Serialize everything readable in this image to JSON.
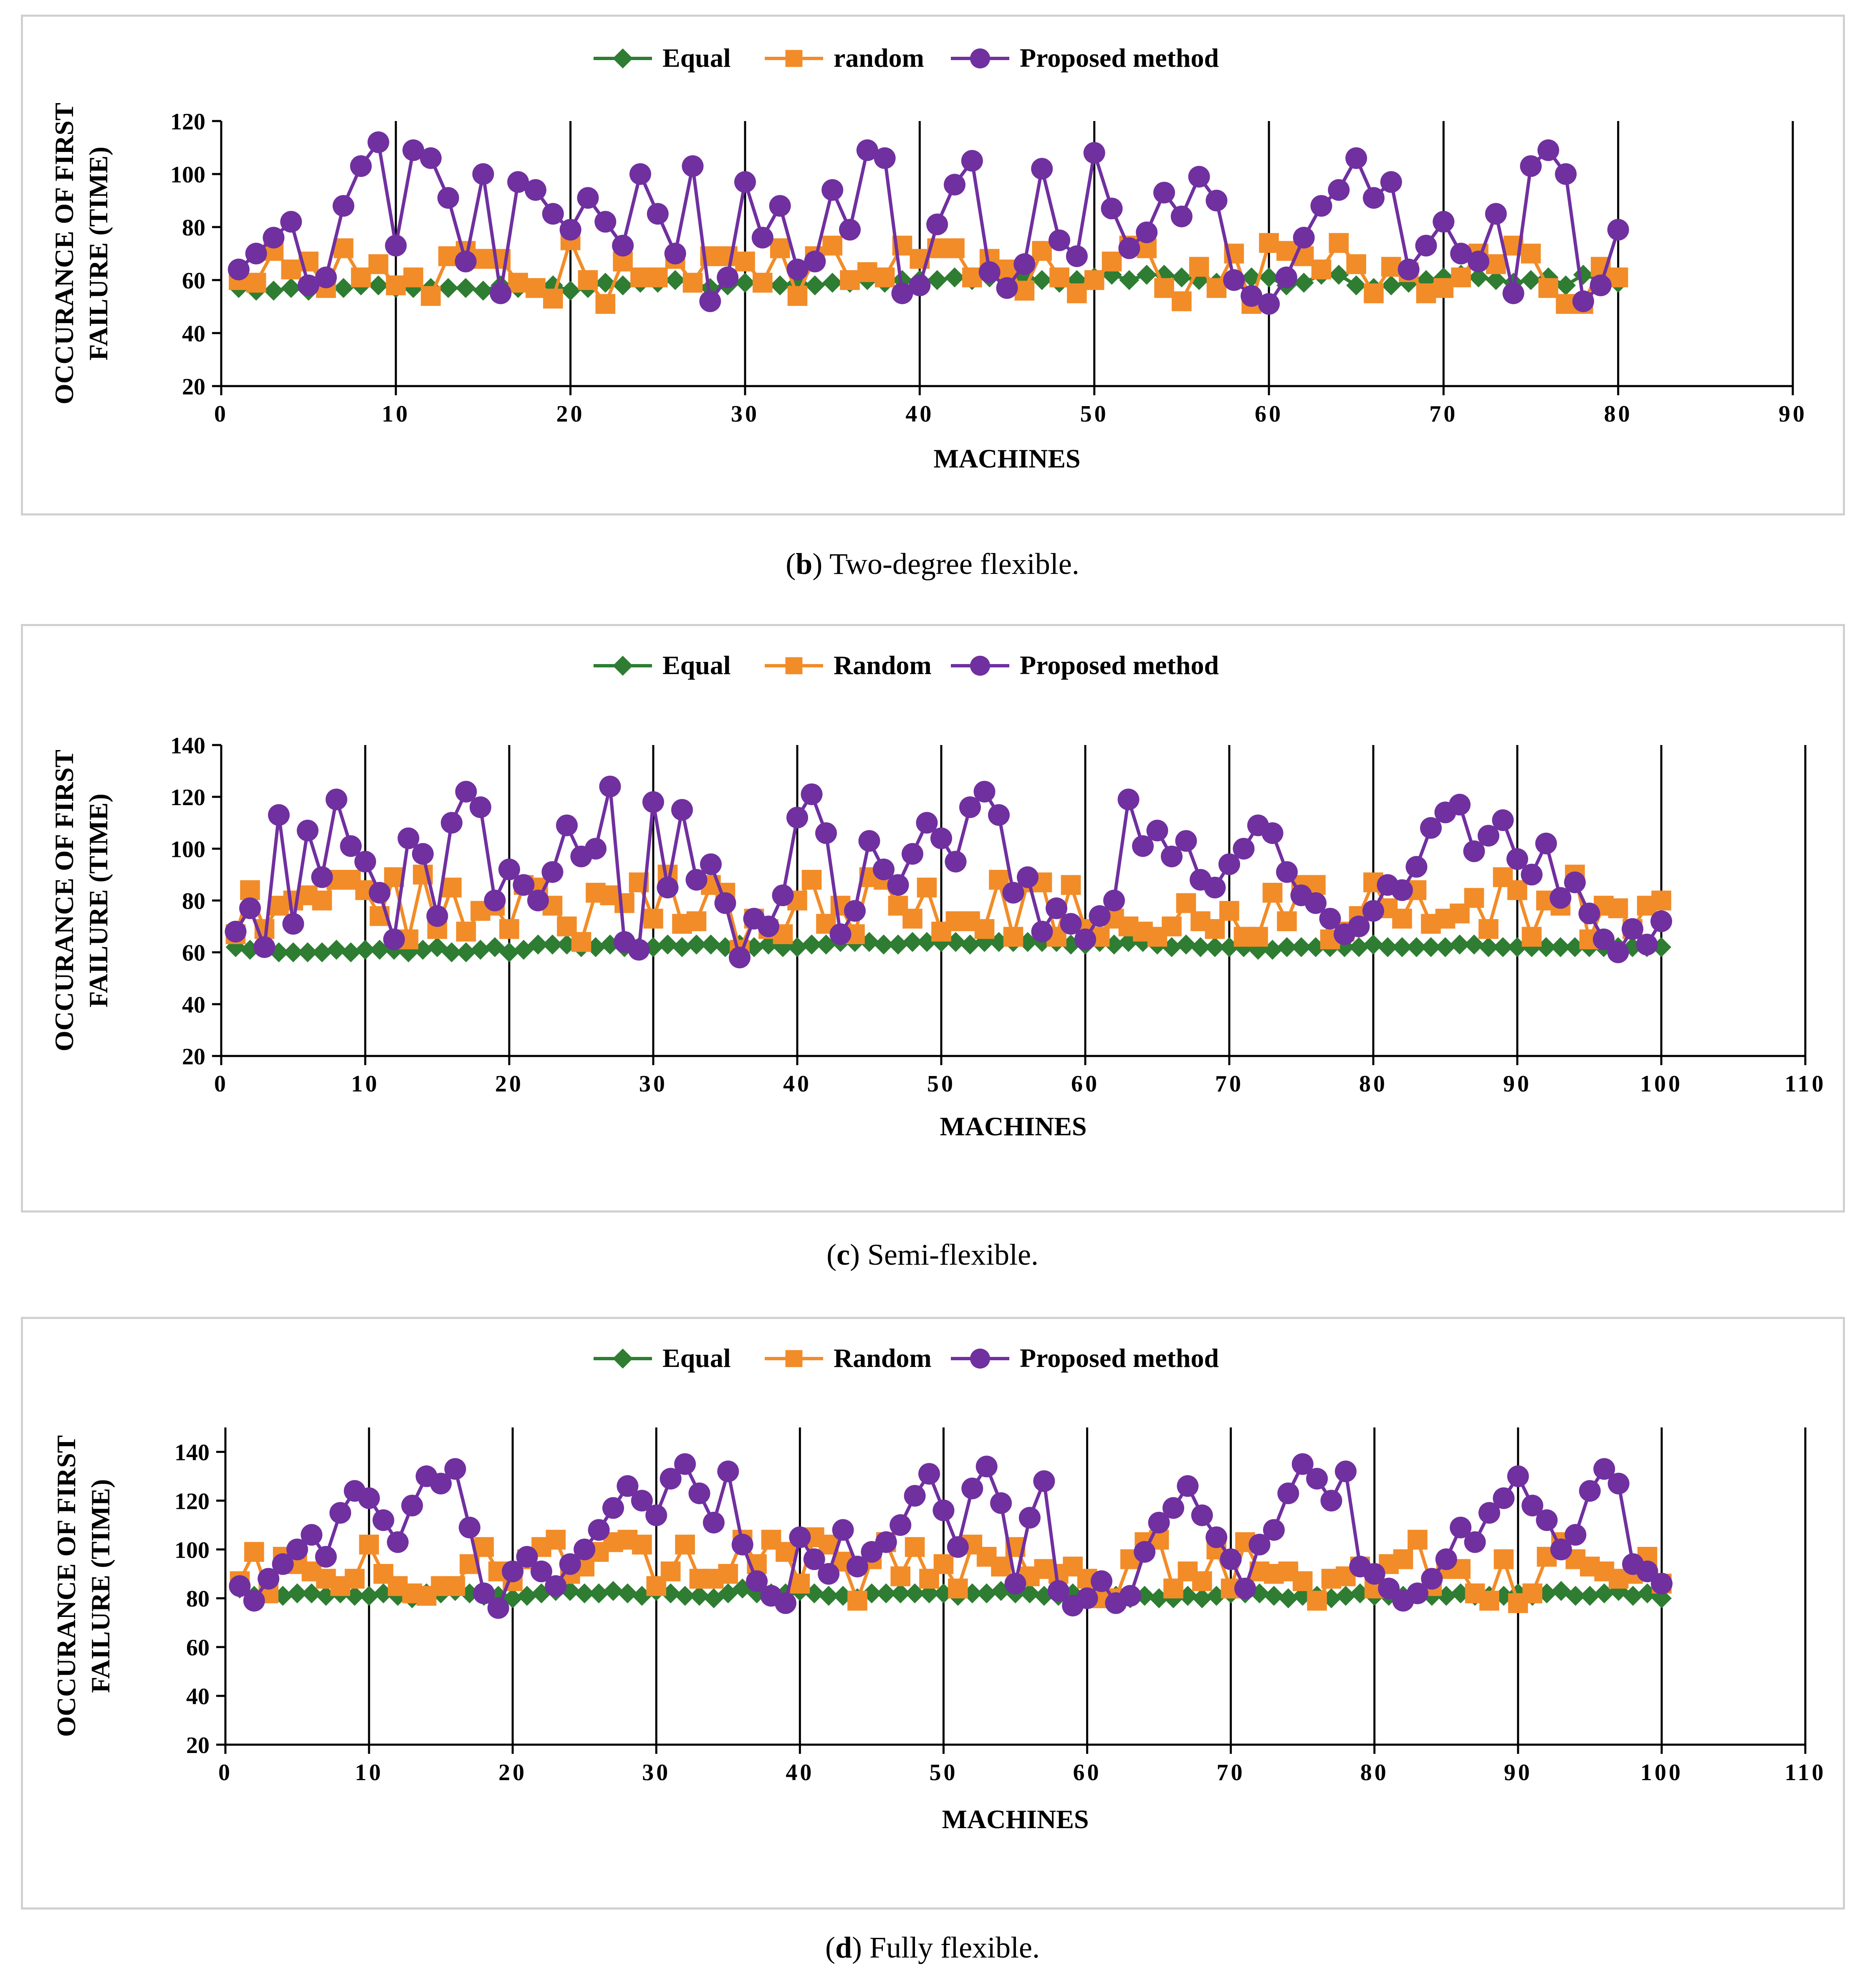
{
  "colors": {
    "equal": "#2e7d32",
    "random": "#f28c28",
    "proposed": "#7030a0",
    "gridline": "#000000"
  },
  "captions": [
    {
      "letter": "b",
      "text": " Two-degree flexible."
    },
    {
      "letter": "c",
      "text": " Semi-flexible."
    },
    {
      "letter": "d",
      "text": " Fully flexible."
    }
  ],
  "chart_data": [
    {
      "type": "line",
      "title": "",
      "xlabel": "MACHINES",
      "ylabel": "OCCURANCE OF FIRST FAILURE (TIME)",
      "ylabel_lines": [
        "OCCURANCE OF FIRST",
        "FAILURE (TIME)"
      ],
      "xlim": [
        0,
        90
      ],
      "ylim": [
        20,
        120
      ],
      "xticks": [
        0,
        10,
        20,
        30,
        40,
        50,
        60,
        70,
        80,
        90
      ],
      "yticks": [
        20,
        40,
        60,
        80,
        100,
        120
      ],
      "x_tick_labels": [
        "0",
        "10",
        "20",
        "30",
        "40",
        "50",
        "60",
        "70",
        "80",
        "90"
      ],
      "y_tick_labels": [
        "20",
        "40",
        "60",
        "80",
        "100",
        "120"
      ],
      "vertical_gridlines": true,
      "legend_position": "top-center",
      "series": [
        {
          "name": "Equal",
          "marker": "diamond",
          "values": [
            57,
            56,
            56,
            57,
            56,
            57,
            57,
            58,
            58,
            57,
            57,
            57,
            57,
            57,
            56,
            58,
            57,
            57,
            58,
            56,
            57,
            59,
            58,
            59,
            59,
            60,
            59,
            57,
            58,
            59,
            59,
            58,
            59,
            58,
            59,
            59,
            60,
            59,
            60,
            60,
            60,
            61,
            60,
            61,
            60,
            61,
            60,
            59,
            60,
            61,
            62,
            60,
            62,
            62,
            61,
            60,
            59,
            60,
            61,
            61,
            58,
            59,
            62,
            62,
            58,
            57,
            58,
            59,
            60,
            61,
            62,
            61,
            60,
            59,
            60,
            61,
            58,
            62,
            60,
            59
          ]
        },
        {
          "name": "random",
          "marker": "square",
          "values": [
            60,
            59,
            71,
            64,
            67,
            57,
            72,
            61,
            66,
            58,
            61,
            54,
            69,
            71,
            68,
            68,
            59,
            57,
            53,
            75,
            60,
            51,
            67,
            61,
            61,
            68,
            59,
            69,
            69,
            67,
            59,
            72,
            54,
            69,
            73,
            60,
            63,
            61,
            73,
            68,
            72,
            72,
            61,
            68,
            64,
            56,
            71,
            61,
            55,
            60,
            67,
            73,
            72,
            57,
            52,
            65,
            57,
            70,
            51,
            74,
            71,
            69,
            64,
            74,
            66,
            55,
            65,
            63,
            55,
            57,
            61,
            70,
            66,
            73,
            70,
            57,
            51,
            51,
            65,
            61
          ]
        },
        {
          "name": "Proposed method",
          "marker": "circle",
          "values": [
            64,
            70,
            76,
            82,
            58,
            61,
            88,
            103,
            112,
            73,
            109,
            106,
            91,
            67,
            100,
            55,
            97,
            94,
            85,
            79,
            91,
            82,
            73,
            100,
            85,
            70,
            103,
            52,
            61,
            97,
            76,
            88,
            64,
            67,
            94,
            79,
            109,
            106,
            55,
            58,
            81,
            96,
            105,
            63,
            57,
            66,
            102,
            75,
            69,
            108,
            87,
            72,
            78,
            93,
            84,
            99,
            90,
            60,
            54,
            51,
            61,
            76,
            88,
            94,
            106,
            91,
            97,
            64,
            73,
            82,
            70,
            67,
            85,
            55,
            103,
            109,
            100,
            52,
            58,
            79
          ]
        }
      ]
    },
    {
      "type": "line",
      "title": "",
      "xlabel": "MACHINES",
      "ylabel": "OCCURANCE OF FIRST FAILURE (TIME)",
      "ylabel_lines": [
        "OCCURANCE OF FIRST",
        "FAILURE (TIME)"
      ],
      "xlim": [
        0,
        110
      ],
      "ylim": [
        20,
        140
      ],
      "xticks": [
        0,
        10,
        20,
        30,
        40,
        50,
        60,
        70,
        80,
        90,
        100,
        110
      ],
      "yticks": [
        20,
        40,
        60,
        80,
        100,
        120,
        140
      ],
      "x_tick_labels": [
        "0",
        "10",
        "20",
        "30",
        "40",
        "50",
        "60",
        "70",
        "80",
        "90",
        "100",
        "110"
      ],
      "y_tick_labels": [
        "20",
        "40",
        "60",
        "80",
        "100",
        "120",
        "140"
      ],
      "vertical_gridlines": true,
      "legend_position": "top-center",
      "series": [
        {
          "name": "Equal",
          "marker": "diamond",
          "values": [
            62,
            61,
            62,
            60,
            60,
            60,
            60,
            61,
            60,
            61,
            61,
            61,
            60,
            61,
            62,
            60,
            60,
            61,
            62,
            60,
            61,
            63,
            63,
            63,
            62,
            62,
            63,
            62,
            62,
            62,
            63,
            62,
            63,
            63,
            62,
            63,
            62,
            63,
            62,
            62,
            63,
            63,
            64,
            64,
            64,
            63,
            63,
            64,
            64,
            64,
            64,
            63,
            64,
            64,
            64,
            64,
            64,
            64,
            63,
            63,
            64,
            63,
            64,
            64,
            63,
            62,
            63,
            62,
            62,
            62,
            62,
            61,
            61,
            62,
            62,
            62,
            62,
            62,
            62,
            63,
            62,
            62,
            62,
            62,
            62,
            63,
            63,
            62,
            62,
            62,
            62,
            62,
            62,
            62,
            62,
            62,
            62,
            62,
            62,
            62
          ]
        },
        {
          "name": "Random",
          "marker": "square",
          "values": [
            67,
            84,
            69,
            78,
            80,
            82,
            80,
            88,
            88,
            84,
            74,
            89,
            65,
            90,
            69,
            85,
            68,
            76,
            78,
            69,
            86,
            85,
            78,
            70,
            64,
            83,
            82,
            79,
            87,
            73,
            90,
            71,
            72,
            86,
            83,
            61,
            73,
            69,
            67,
            80,
            88,
            71,
            78,
            67,
            89,
            88,
            78,
            73,
            85,
            68,
            72,
            72,
            69,
            88,
            66,
            87,
            87,
            66,
            86,
            69,
            66,
            73,
            70,
            68,
            66,
            70,
            79,
            72,
            69,
            76,
            66,
            66,
            83,
            72,
            86,
            86,
            65,
            68,
            74,
            87,
            77,
            73,
            84,
            71,
            73,
            75,
            81,
            69,
            89,
            84,
            66,
            80,
            78,
            90,
            65,
            78,
            77,
            69,
            78,
            80
          ]
        },
        {
          "name": "Proposed method",
          "marker": "circle",
          "values": [
            68,
            77,
            62,
            113,
            71,
            107,
            89,
            119,
            101,
            95,
            83,
            65,
            104,
            98,
            74,
            110,
            122,
            116,
            80,
            92,
            86,
            80,
            91,
            109,
            97,
            100,
            124,
            64,
            61,
            118,
            85,
            115,
            88,
            94,
            79,
            58,
            73,
            70,
            82,
            112,
            121,
            106,
            67,
            76,
            103,
            92,
            86,
            98,
            110,
            104,
            95,
            116,
            122,
            113,
            83,
            89,
            68,
            77,
            71,
            65,
            74,
            80,
            119,
            101,
            107,
            97,
            103,
            88,
            85,
            94,
            100,
            109,
            106,
            91,
            82,
            79,
            73,
            67,
            70,
            76,
            86,
            84,
            93,
            108,
            114,
            117,
            99,
            105,
            111,
            96,
            90,
            102,
            81,
            87,
            75,
            65,
            60,
            69,
            63,
            72
          ]
        }
      ]
    },
    {
      "type": "line",
      "title": "",
      "xlabel": "MACHINES",
      "ylabel": "OCCURANCE OF FIRST FAILURE (TIME)",
      "ylabel_lines": [
        "OCCURANCE OF FIRST",
        "FAILURE (TIME)"
      ],
      "xlim": [
        0,
        110
      ],
      "ylim": [
        20,
        150
      ],
      "xticks": [
        0,
        10,
        20,
        30,
        40,
        50,
        60,
        70,
        80,
        90,
        100,
        110
      ],
      "yticks": [
        20,
        40,
        60,
        80,
        100,
        120,
        140
      ],
      "x_tick_labels": [
        "0",
        "10",
        "20",
        "30",
        "40",
        "50",
        "60",
        "70",
        "80",
        "90",
        "100",
        "110"
      ],
      "y_tick_labels": [
        "20",
        "40",
        "60",
        "80",
        "100",
        "120",
        "140"
      ],
      "vertical_gridlines": true,
      "legend_position": "top-center",
      "series": [
        {
          "name": "Equal",
          "marker": "diamond",
          "values": [
            84,
            81,
            82,
            81,
            82,
            82,
            81,
            82,
            81,
            81,
            82,
            81,
            80,
            82,
            82,
            83,
            82,
            81,
            81,
            80,
            81,
            82,
            83,
            83,
            82,
            82,
            83,
            82,
            81,
            83,
            82,
            81,
            81,
            80,
            82,
            84,
            82,
            82,
            82,
            83,
            82,
            81,
            81,
            80,
            82,
            82,
            82,
            82,
            82,
            82,
            81,
            82,
            82,
            83,
            82,
            82,
            81,
            81,
            82,
            81,
            80,
            81,
            80,
            81,
            80,
            80,
            81,
            80,
            81,
            82,
            82,
            82,
            81,
            80,
            81,
            81,
            80,
            81,
            82,
            81,
            81,
            81,
            82,
            81,
            81,
            82,
            81,
            81,
            81,
            82,
            81,
            82,
            83,
            81,
            81,
            82,
            83,
            81,
            82,
            80
          ]
        },
        {
          "name": "Random",
          "marker": "square",
          "values": [
            87,
            99,
            82,
            97,
            94,
            91,
            88,
            85,
            88,
            102,
            90,
            85,
            82,
            81,
            85,
            85,
            94,
            101,
            91,
            87,
            96,
            101,
            104,
            90,
            93,
            99,
            103,
            104,
            102,
            85,
            91,
            102,
            88,
            88,
            90,
            104,
            94,
            104,
            99,
            86,
            105,
            102,
            95,
            79,
            96,
            103,
            89,
            101,
            88,
            94,
            84,
            102,
            97,
            93,
            101,
            89,
            92,
            90,
            93,
            88,
            80,
            80,
            96,
            103,
            104,
            84,
            91,
            87,
            100,
            84,
            103,
            91,
            90,
            91,
            87,
            79,
            88,
            89,
            93,
            84,
            94,
            96,
            104,
            85,
            92,
            92,
            82,
            79,
            96,
            78,
            82,
            97,
            103,
            96,
            93,
            91,
            88,
            90,
            97,
            86
          ]
        },
        {
          "name": "Proposed method",
          "marker": "circle",
          "values": [
            85,
            79,
            88,
            94,
            100,
            106,
            97,
            115,
            124,
            121,
            112,
            103,
            118,
            130,
            127,
            133,
            109,
            82,
            76,
            91,
            97,
            91,
            85,
            94,
            100,
            108,
            117,
            126,
            120,
            114,
            129,
            135,
            123,
            111,
            132,
            102,
            87,
            81,
            78,
            105,
            96,
            90,
            108,
            93,
            99,
            103,
            110,
            122,
            131,
            116,
            101,
            125,
            134,
            119,
            86,
            113,
            128,
            83,
            77,
            80,
            87,
            78,
            81,
            99,
            111,
            117,
            126,
            114,
            105,
            96,
            84,
            102,
            108,
            123,
            135,
            129,
            120,
            132,
            93,
            90,
            84,
            79,
            82,
            88,
            96,
            109,
            103,
            115,
            121,
            130,
            118,
            112,
            100,
            106,
            124,
            133,
            127,
            94,
            91,
            86
          ]
        }
      ]
    }
  ]
}
